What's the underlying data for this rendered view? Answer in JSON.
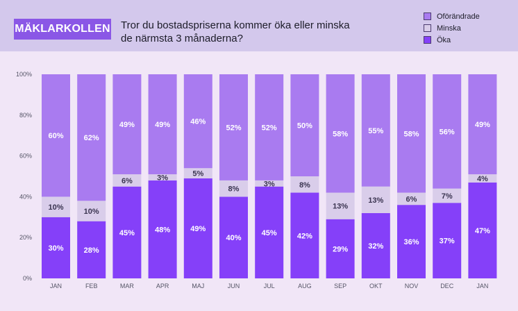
{
  "header": {
    "brand": "MÄKLARKOLLEN",
    "question_line1": "Tror du bostadspriserna kommer öka eller minska",
    "question_line2": "de närmsta 3 månaderna?"
  },
  "legend": [
    {
      "label": "Oförändrade",
      "color": "#a97bf0"
    },
    {
      "label": "Minska",
      "color": "#d9cdea"
    },
    {
      "label": "Öka",
      "color": "#8540f9"
    }
  ],
  "chart_data": {
    "type": "bar",
    "stacked": true,
    "title": "Tror du bostadspriserna kommer öka eller minska de närmsta 3 månaderna?",
    "categories": [
      "JAN",
      "FEB",
      "MAR",
      "APR",
      "MAJ",
      "JUN",
      "JUL",
      "AUG",
      "SEP",
      "OKT",
      "NOV",
      "DEC",
      "JAN"
    ],
    "series": [
      {
        "name": "Öka",
        "color": "#8540f9",
        "values": [
          30,
          28,
          45,
          48,
          49,
          40,
          45,
          42,
          29,
          32,
          36,
          37,
          47
        ]
      },
      {
        "name": "Minska",
        "color": "#d9cdea",
        "values": [
          10,
          10,
          6,
          3,
          5,
          8,
          3,
          8,
          13,
          13,
          6,
          7,
          4
        ]
      },
      {
        "name": "Oförändrade",
        "color": "#a97bf0",
        "values": [
          60,
          62,
          49,
          49,
          46,
          52,
          52,
          50,
          58,
          55,
          58,
          56,
          49
        ]
      }
    ],
    "y_ticks": [
      "0%",
      "20%",
      "40%",
      "60%",
      "80%",
      "100%"
    ],
    "ylim": [
      0,
      100
    ],
    "xlabel": "",
    "ylabel": "",
    "legend_position": "top-right"
  }
}
